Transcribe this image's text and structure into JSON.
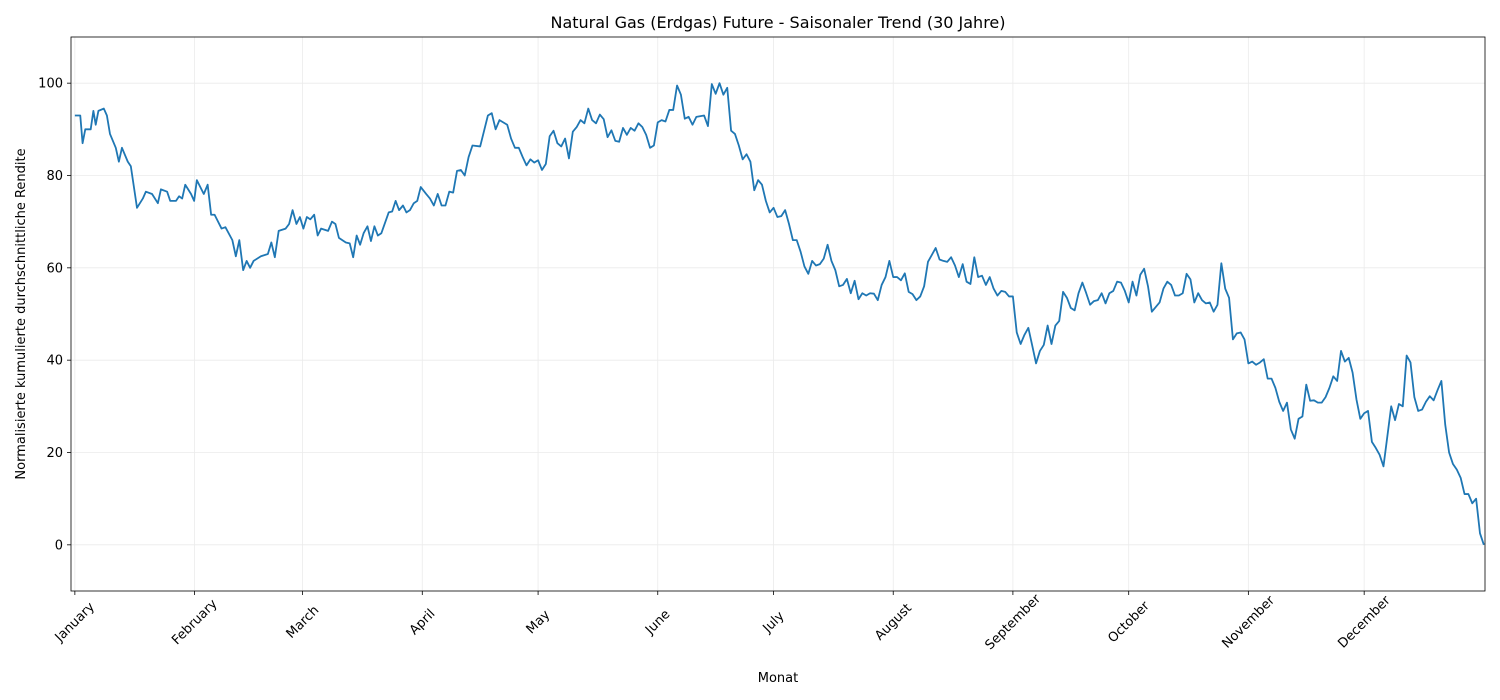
{
  "chart_data": {
    "type": "line",
    "title": "Natural Gas (Erdgas) Future - Saisonaler Trend (30 Jahre)",
    "x_label": "Monat",
    "y_label": "Normalisierte kumulierte durchschnittliche Rendite",
    "x": [
      0,
      1.4,
      2,
      2.7,
      4.1,
      4.8,
      5.4,
      6.1,
      7.5,
      8.3,
      9.1,
      10.6,
      11.4,
      12.2,
      13.7,
      14.5,
      16.1,
      17.6,
      18.4,
      20,
      21.5,
      22.3,
      23.9,
      24.7,
      26.2,
      27,
      27.8,
      28.6,
      30.1,
      30.9,
      31.6,
      33.4,
      34.4,
      35.3,
      36.2,
      38,
      39,
      40.8,
      41.7,
      42.6,
      43.6,
      44.5,
      45.4,
      46.3,
      48.2,
      50,
      50.9,
      51.8,
      52.8,
      54.6,
      55.5,
      56.4,
      57.4,
      58.3,
      59.2,
      60.1,
      61,
      62,
      62.9,
      63.8,
      65.6,
      66.6,
      67.5,
      68.4,
      70.2,
      71.2,
      72.1,
      73,
      73.9,
      74.8,
      75.8,
      76.7,
      77.6,
      78.5,
      79.4,
      81.3,
      82.2,
      83.1,
      84,
      85,
      85.9,
      86.8,
      87.8,
      88.7,
      89.6,
      91,
      92,
      93,
      94,
      95,
      96,
      97,
      98,
      99,
      100,
      101,
      102,
      103,
      105,
      107,
      108,
      109,
      110,
      112,
      113,
      114,
      115,
      116,
      117,
      118,
      119,
      120,
      121,
      122,
      123,
      124,
      125,
      126,
      127,
      128,
      129,
      130,
      131,
      132,
      133,
      134,
      135,
      136,
      137,
      138,
      139,
      140,
      141,
      142,
      143,
      144,
      145,
      146,
      147,
      148,
      149,
      150,
      151,
      152,
      153,
      154,
      155,
      156,
      157,
      158,
      159,
      160,
      161,
      163,
      164,
      165,
      166,
      167,
      168,
      169,
      170,
      171,
      172,
      173,
      174,
      175,
      176,
      177,
      178,
      179,
      180,
      181,
      182,
      183,
      184,
      185,
      186,
      187,
      188,
      189,
      190,
      191,
      192,
      193,
      194,
      195,
      196,
      197,
      198,
      199,
      200,
      201,
      202,
      203,
      204,
      205,
      206,
      207,
      208,
      209,
      210,
      211,
      212,
      213,
      214,
      215,
      216,
      217,
      218,
      219,
      220,
      221,
      222,
      223,
      224,
      225,
      226,
      227,
      228,
      229,
      230,
      231,
      232,
      233,
      234,
      235,
      236,
      237,
      238,
      239,
      240,
      241,
      242,
      243,
      244,
      245,
      246,
      247,
      248,
      249,
      250,
      251,
      252,
      253,
      254,
      255,
      256,
      257,
      258,
      259,
      260,
      261,
      262,
      263,
      264,
      265,
      266,
      267,
      268,
      269,
      270,
      271,
      272,
      273,
      274,
      275,
      276,
      277,
      278,
      279,
      280,
      281,
      282,
      283,
      284,
      285,
      286,
      287,
      288,
      289,
      290,
      291,
      292,
      293,
      294,
      295,
      296,
      297,
      298,
      299,
      300,
      301,
      302,
      303,
      304,
      305,
      306,
      307,
      308,
      309,
      310,
      311,
      312,
      313,
      314,
      315,
      316,
      317,
      318,
      319,
      320,
      321,
      322,
      323,
      324,
      325,
      326,
      327,
      328,
      329,
      330,
      331,
      332,
      333,
      334,
      335,
      336,
      337,
      338,
      339,
      340,
      341,
      342,
      343,
      344,
      345,
      346,
      347,
      348,
      349,
      350,
      351,
      352,
      353,
      354,
      355,
      356,
      357,
      358,
      359,
      360,
      361,
      362,
      363,
      364,
      365
    ],
    "series": [
      {
        "name": "Natural Gas",
        "color": "#1f77b4",
        "values": [
          93,
          93,
          87,
          90,
          90,
          94,
          91,
          94,
          94.5,
          93,
          89,
          86,
          83,
          86,
          83,
          82,
          73,
          75,
          76.5,
          76,
          74,
          77,
          76.5,
          74.5,
          74.5,
          75.5,
          75,
          78,
          76,
          74.5,
          79,
          76,
          78,
          71.5,
          71.5,
          68.5,
          68.8,
          66,
          62.5,
          66,
          59.5,
          61.5,
          60,
          61.5,
          62.5,
          63,
          65.5,
          62.3,
          68,
          68.5,
          69.5,
          72.5,
          69.5,
          71,
          68.5,
          71,
          70.5,
          71.5,
          67,
          68.5,
          68,
          70,
          69.5,
          66.5,
          65.5,
          65.3,
          62.3,
          67,
          65,
          67.5,
          69,
          65.8,
          69,
          67,
          67.5,
          72,
          72.2,
          74.5,
          72.5,
          73.5,
          72,
          72.5,
          74,
          74.5,
          77.5,
          76,
          75,
          73.5,
          76,
          73.5,
          73.5,
          76.5,
          76.3,
          81,
          81.2,
          80,
          84,
          86.5,
          86.3,
          93,
          93.5,
          90,
          92,
          91,
          88,
          86,
          86,
          84,
          82.2,
          83.5,
          82.8,
          83.3,
          81.2,
          82.5,
          88.5,
          89.7,
          87,
          86.3,
          88,
          83.7,
          89.5,
          90.5,
          92,
          91.3,
          94.5,
          92,
          91.3,
          93.2,
          92.2,
          88.3,
          89.8,
          87.5,
          87.3,
          90.3,
          88.8,
          90.3,
          89.7,
          91.3,
          90.5,
          88.8,
          86,
          86.5,
          91.5,
          92,
          91.7,
          94.2,
          94.2,
          99.5,
          97.5,
          92.3,
          92.7,
          91,
          92.7,
          93,
          90.7,
          99.8,
          97.7,
          100,
          97.5,
          99,
          89.7,
          89,
          86.5,
          83.5,
          84.6,
          83,
          76.8,
          79,
          78,
          74.5,
          72,
          73,
          71,
          71.2,
          72.5,
          69.5,
          66,
          66,
          63.5,
          60.3,
          58.7,
          61.5,
          60.5,
          60.8,
          62,
          65,
          61.5,
          59.5,
          56,
          56.3,
          57.6,
          54.5,
          57.2,
          53.2,
          54.5,
          54,
          54.5,
          54.4,
          53,
          56.3,
          58,
          61.5,
          58,
          58,
          57.3,
          58.8,
          54.8,
          54.3,
          53,
          53.8,
          56,
          61.3,
          62.8,
          64.3,
          61.8,
          61.5,
          61.3,
          62.3,
          60.5,
          58,
          60.8,
          57,
          56.5,
          62.3,
          58,
          58.3,
          56.3,
          58,
          55.5,
          54,
          55,
          54.8,
          53.8,
          53.8,
          46,
          43.5,
          45.5,
          47,
          43.2,
          39.3,
          42,
          43.3,
          47.5,
          43.5,
          47.5,
          48.5,
          54.8,
          53.5,
          51.3,
          50.8,
          54.5,
          56.8,
          54.5,
          52,
          52.8,
          53,
          54.5,
          52.3,
          54.5,
          55,
          57,
          56.8,
          55,
          52.5,
          57,
          54,
          58.5,
          59.8,
          56,
          50.5,
          51.5,
          52.5,
          55.5,
          57,
          56.3,
          54,
          54,
          54.5,
          58.7,
          57.5,
          52.5,
          54.5,
          53,
          52.3,
          52.5,
          50.5,
          52,
          61,
          55.5,
          53.5,
          44.5,
          45.8,
          46,
          44.5,
          39.3,
          39.7,
          39,
          39.5,
          40.2,
          36,
          36,
          34,
          31,
          29,
          30.8,
          25,
          23,
          27.3,
          27.8,
          34.7,
          31.2,
          31.3,
          30.8,
          30.8,
          32,
          34,
          36.5,
          35.5,
          42,
          39.7,
          40.5,
          37.3,
          31.5,
          27.3,
          28.5,
          29,
          22.3,
          21,
          19.5,
          17,
          23.5,
          30,
          27,
          30.5,
          30,
          41,
          39.5,
          32,
          29,
          29.3,
          31,
          32.2,
          31.3,
          33.5,
          35.5,
          26,
          20,
          17.5,
          16.3,
          14.5,
          11,
          11,
          9,
          10,
          2.5,
          0
        ]
      }
    ],
    "xlim": [
      -1,
      365.3
    ],
    "ylim": [
      -10,
      110
    ],
    "yticks": [
      0,
      20,
      40,
      60,
      80,
      100
    ],
    "xticks": [
      {
        "value": 0,
        "label": "January"
      },
      {
        "value": 31,
        "label": "February"
      },
      {
        "value": 59,
        "label": "March"
      },
      {
        "value": 90,
        "label": "April"
      },
      {
        "value": 120,
        "label": "May"
      },
      {
        "value": 151,
        "label": "June"
      },
      {
        "value": 181,
        "label": "July"
      },
      {
        "value": 212,
        "label": "August"
      },
      {
        "value": 243,
        "label": "September"
      },
      {
        "value": 273,
        "label": "October"
      },
      {
        "value": 304,
        "label": "November"
      },
      {
        "value": 334,
        "label": "December"
      }
    ],
    "grid": true
  }
}
